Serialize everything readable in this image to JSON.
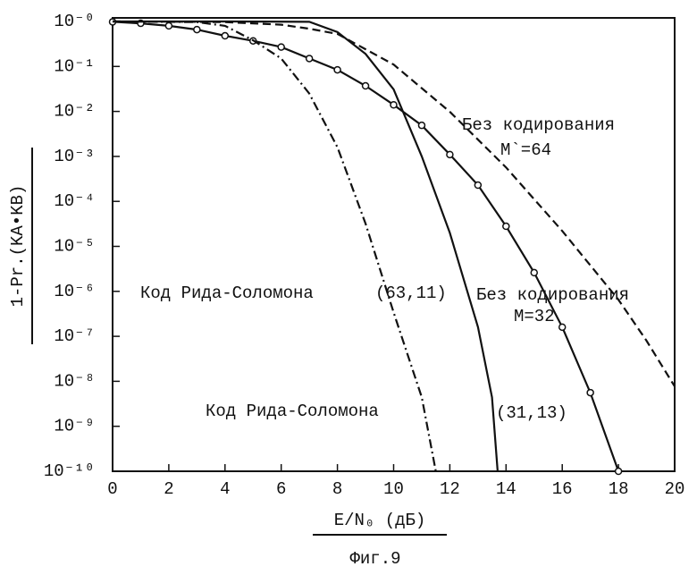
{
  "chart_data": {
    "type": "line",
    "caption": "Фиг.9",
    "x_label": "E/N₀ (дБ)",
    "y_label": "1-Pr.(KA•KB)",
    "y_log": true,
    "xlim": [
      0,
      20
    ],
    "xticks": [
      0,
      2,
      4,
      6,
      8,
      10,
      12,
      14,
      16,
      18,
      20
    ],
    "ylim": [
      1e-10,
      1
    ],
    "yticks": [
      {
        "value": 1,
        "label": "10⁻⁰"
      },
      {
        "value": 0.1,
        "label": "10⁻¹"
      },
      {
        "value": 0.01,
        "label": "10⁻²"
      },
      {
        "value": 0.001,
        "label": "10⁻³"
      },
      {
        "value": 0.0001,
        "label": "10⁻⁴"
      },
      {
        "value": 1e-05,
        "label": "10⁻⁵"
      },
      {
        "value": 1e-06,
        "label": "10⁻⁶"
      },
      {
        "value": 1e-07,
        "label": "10⁻⁷"
      },
      {
        "value": 1e-08,
        "label": "10⁻⁸"
      },
      {
        "value": 1e-09,
        "label": "10⁻⁹"
      },
      {
        "value": 1e-10,
        "label": "10⁻¹⁰"
      }
    ],
    "series": [
      {
        "color": "#111111",
        "style": "solid",
        "marker": "circle",
        "x": [
          0,
          1,
          2,
          3,
          4,
          5,
          6,
          7,
          8,
          9,
          10,
          11,
          12,
          13,
          14,
          15,
          16,
          17,
          18
        ],
        "values": [
          0.98,
          0.91,
          0.8,
          0.66,
          0.48,
          0.37,
          0.27,
          0.15,
          0.084,
          0.037,
          0.014,
          0.0049,
          0.0011,
          0.00023,
          2.8e-05,
          2.6e-06,
          1.6e-07,
          5.6e-09,
          1e-10
        ]
      },
      {
        "color": "#111111",
        "style": "dashed",
        "marker": "none",
        "x": [
          0,
          2,
          4,
          6,
          7,
          8,
          10,
          12,
          14,
          16,
          18,
          19,
          20
        ],
        "values": [
          1,
          0.99,
          0.97,
          0.85,
          0.69,
          0.53,
          0.11,
          0.0098,
          0.00057,
          2.2e-05,
          6.5e-07,
          8e-08,
          7.7e-09
        ]
      },
      {
        "color": "#111111",
        "style": "solid",
        "marker": "none",
        "x": [
          0,
          4,
          7,
          8,
          9,
          10,
          11,
          12,
          13,
          13.5,
          13.7
        ],
        "values": [
          1,
          1,
          0.98,
          0.58,
          0.19,
          0.031,
          0.001,
          2e-05,
          1.6e-07,
          4.4e-09,
          1e-10
        ]
      },
      {
        "color": "#111111",
        "style": "dashdot",
        "marker": "none",
        "x": [
          0,
          3,
          4,
          5,
          6,
          7,
          8,
          9,
          10,
          11,
          11.5
        ],
        "values": [
          1,
          0.97,
          0.8,
          0.38,
          0.15,
          0.025,
          0.0016,
          3.2e-05,
          3.4e-07,
          4.4e-09,
          1e-10
        ]
      }
    ],
    "annotations": [
      "Без кодирования",
      "M`=64",
      "Код Рида-Соломона",
      "(63,11)",
      "Без кодирования",
      "M=32",
      "Код Рида-Соломона",
      "(31,13)"
    ]
  }
}
